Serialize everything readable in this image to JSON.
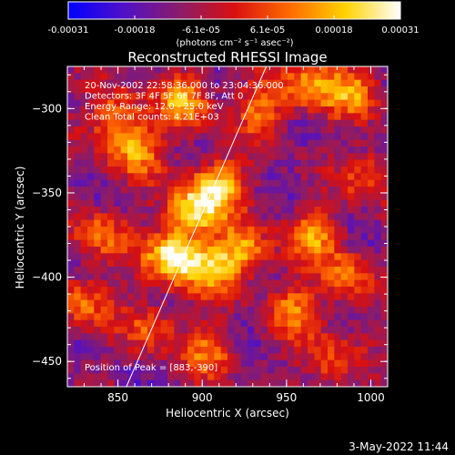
{
  "chart_data": {
    "type": "heatmap",
    "title": "Reconstructed RHESSI Image",
    "xlabel": "Heliocentric X (arcsec)",
    "ylabel": "Heliocentric Y (arcsec)",
    "xlim": [
      820,
      1010
    ],
    "ylim": [
      -465,
      -275
    ],
    "x_ticks": [
      850,
      900,
      950,
      1000
    ],
    "y_ticks": [
      -300,
      -350,
      -400,
      -450
    ],
    "x_tick_labels": [
      "850",
      "900",
      "950",
      "1000"
    ],
    "y_tick_labels": [
      "−300",
      "−350",
      "−400",
      "−450"
    ],
    "colorbar": {
      "range": [
        -0.00031,
        0.00031
      ],
      "tick_labels": [
        "-0.00031",
        "-0.00018",
        "-6.1e-05",
        "6.1e-05",
        "0.00018",
        "0.00031"
      ],
      "unit_label": "(photons cm⁻² s⁻¹ asec⁻²)",
      "colors": [
        "#0000ff",
        "#5010c8",
        "#8a1c6a",
        "#d81010",
        "#ff6a00",
        "#ffd200",
        "#ffffff"
      ]
    },
    "annotations": [
      "20-Nov-2002 22:58:36.000 to 23:04:36.000",
      "Detectors: 3F 4F 5F 6F 7F 8F, Att 0",
      "Energy Range: 12.0 - 25.0 keV",
      "Clean     Total counts: 4.21E+03"
    ],
    "peak_label": "Position of Peak = [883,-390]",
    "peak": [
      883,
      -390
    ],
    "limb_line": [
      [
        855,
        -465
      ],
      [
        938,
        -275
      ]
    ],
    "hotspots": [
      {
        "x": 883,
        "y": -388,
        "value": 0.00031
      },
      {
        "x": 895,
        "y": -360,
        "value": 0.00024
      },
      {
        "x": 910,
        "y": -345,
        "value": 0.0002
      },
      {
        "x": 925,
        "y": -385,
        "value": 0.00017
      },
      {
        "x": 905,
        "y": -395,
        "value": 0.00015
      },
      {
        "x": 860,
        "y": -325,
        "value": 0.00016
      },
      {
        "x": 850,
        "y": -305,
        "value": 0.00014
      },
      {
        "x": 890,
        "y": -295,
        "value": 0.00017
      },
      {
        "x": 935,
        "y": -300,
        "value": 0.00012
      },
      {
        "x": 965,
        "y": -285,
        "value": 0.00016
      },
      {
        "x": 990,
        "y": -290,
        "value": 0.00013
      },
      {
        "x": 965,
        "y": -375,
        "value": 0.00014
      },
      {
        "x": 985,
        "y": -400,
        "value": 0.00012
      },
      {
        "x": 955,
        "y": -420,
        "value": 0.00011
      },
      {
        "x": 870,
        "y": -430,
        "value": 9e-05
      },
      {
        "x": 905,
        "y": -445,
        "value": 0.0001
      },
      {
        "x": 840,
        "y": -375,
        "value": 0.00011
      },
      {
        "x": 975,
        "y": -450,
        "value": 9e-05
      },
      {
        "x": 830,
        "y": -415,
        "value": 0.0001
      },
      {
        "x": 1000,
        "y": -340,
        "value": 0.0001
      }
    ]
  },
  "footer": {
    "date": "3-May-2022 11:44"
  }
}
